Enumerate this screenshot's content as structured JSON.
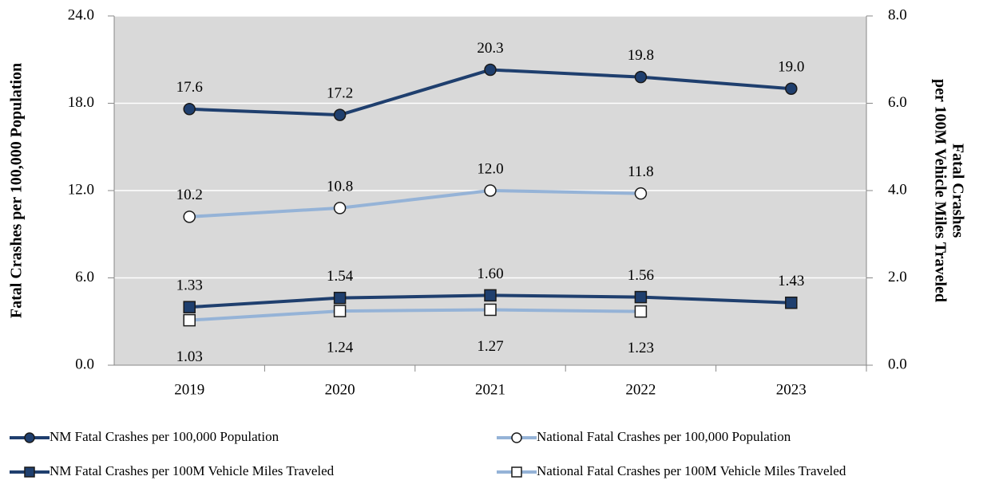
{
  "chart_data": {
    "type": "line",
    "categories": [
      "2019",
      "2020",
      "2021",
      "2022",
      "2023"
    ],
    "ylabel": "Fatal Crashes per 100,000 Population",
    "y2label": [
      "Fatal Crashes",
      "per 100M Vehicle Miles Traveled"
    ],
    "ylim": [
      0,
      24
    ],
    "yticks": [
      {
        "value": 0,
        "label": "0.0"
      },
      {
        "value": 6,
        "label": "6.0"
      },
      {
        "value": 12,
        "label": "12.0"
      },
      {
        "value": 18,
        "label": "18.0"
      },
      {
        "value": 24,
        "label": "24.0"
      }
    ],
    "y2lim": [
      0,
      8
    ],
    "y2ticks": [
      {
        "value": 0,
        "label": "0.0"
      },
      {
        "value": 2,
        "label": "2.0"
      },
      {
        "value": 4,
        "label": "4.0"
      },
      {
        "value": 6,
        "label": "6.0"
      },
      {
        "value": 8,
        "label": "8.0"
      }
    ],
    "grid": true,
    "series": [
      {
        "name": "NM Fatal Crashes per 100,000 Population",
        "color": "#1f3f6e",
        "marker": "circle",
        "marker_fill": "#1f3f6e",
        "values": [
          17.6,
          17.2,
          20.3,
          19.8,
          19.0
        ],
        "value_labels": [
          "17.6",
          "17.2",
          "20.3",
          "19.8",
          "19.0"
        ]
      },
      {
        "name": "National Fatal Crashes per 100,000 Population",
        "color": "#95b3d7",
        "marker": "circle",
        "marker_fill": "#ffffff",
        "values": [
          10.2,
          10.8,
          12.0,
          11.8,
          null
        ],
        "value_labels": [
          "10.2",
          "10.8",
          "12.0",
          "11.8",
          null
        ]
      },
      {
        "name": "NM Fatal Crashes per 100M Vehicle Miles Traveled",
        "color": "#1f3f6e",
        "marker": "square",
        "marker_fill": "#1f3f6e",
        "axis": "y2",
        "values": [
          1.33,
          1.54,
          1.6,
          1.56,
          1.43
        ],
        "value_labels": [
          "1.33",
          "1.54",
          "1.60",
          "1.56",
          "1.43"
        ]
      },
      {
        "name": "National Fatal Crashes per 100M Vehicle Miles Traveled",
        "color": "#95b3d7",
        "marker": "square",
        "marker_fill": "#ffffff",
        "axis": "y2",
        "values": [
          1.03,
          1.24,
          1.27,
          1.23,
          null
        ],
        "value_labels": [
          "1.03",
          "1.24",
          "1.27",
          "1.23",
          null
        ]
      }
    ]
  }
}
